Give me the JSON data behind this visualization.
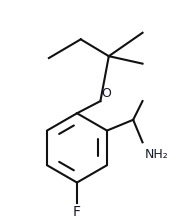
{
  "bg_color": "#ffffff",
  "line_color": "#111111",
  "text_color": "#1a1a2e",
  "lw": 1.5,
  "fs": 9.0,
  "figsize": [
    1.76,
    2.19
  ],
  "dpi": 100,
  "xlim": [
    0,
    176
  ],
  "ylim": [
    0,
    219
  ]
}
